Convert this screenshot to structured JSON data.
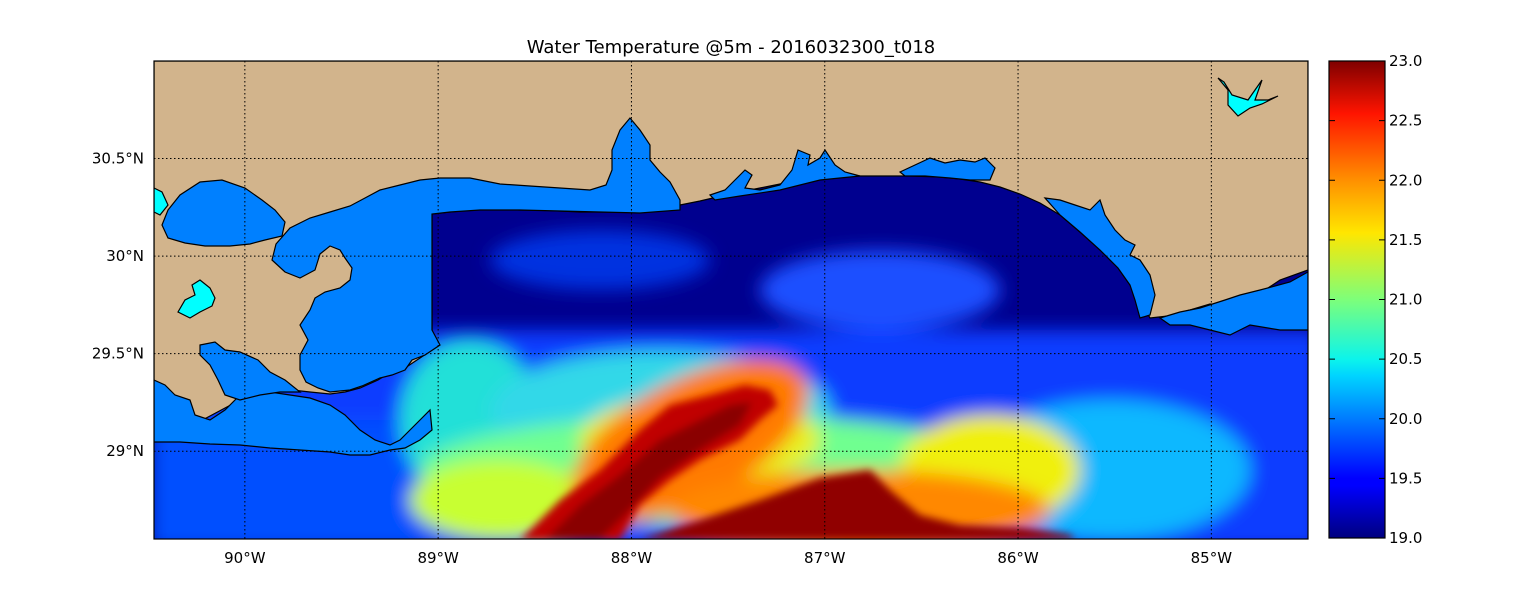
{
  "title": "Water Temperature @5m - 2016032300_t018",
  "map": {
    "variable": "Water Temperature",
    "depth": "5m",
    "run": "2016032300_t018",
    "lon_range": [
      -90.47,
      -84.5
    ],
    "lat_range": [
      28.55,
      31.0
    ],
    "lon_ticks": [
      {
        "value": -90,
        "label": "90°W"
      },
      {
        "value": -89,
        "label": "89°W"
      },
      {
        "value": -88,
        "label": "88°W"
      },
      {
        "value": -87,
        "label": "87°W"
      },
      {
        "value": -86,
        "label": "86°W"
      },
      {
        "value": -85,
        "label": "85°W"
      }
    ],
    "lat_ticks": [
      {
        "value": 30.5,
        "label": "30.5°N"
      },
      {
        "value": 30.0,
        "label": "30°N"
      },
      {
        "value": 29.5,
        "label": "29.5°N"
      },
      {
        "value": 29.0,
        "label": "29°N"
      }
    ],
    "grid": "dotted",
    "colors": {
      "land": "#d2b48c",
      "coastline": "#000000",
      "bay_water": "#0080ff",
      "lake_water": "#00ffff"
    }
  },
  "colorbar": {
    "colormap": "jet",
    "min": 19.0,
    "max": 23.0,
    "ticks": [
      {
        "value": 23.0,
        "label": "23.0"
      },
      {
        "value": 22.5,
        "label": "22.5"
      },
      {
        "value": 22.0,
        "label": "22.0"
      },
      {
        "value": 21.5,
        "label": "21.5"
      },
      {
        "value": 21.0,
        "label": "21.0"
      },
      {
        "value": 20.5,
        "label": "20.5"
      },
      {
        "value": 20.0,
        "label": "20.0"
      },
      {
        "value": 19.5,
        "label": "19.5"
      },
      {
        "value": 19.0,
        "label": "19.0"
      }
    ]
  }
}
